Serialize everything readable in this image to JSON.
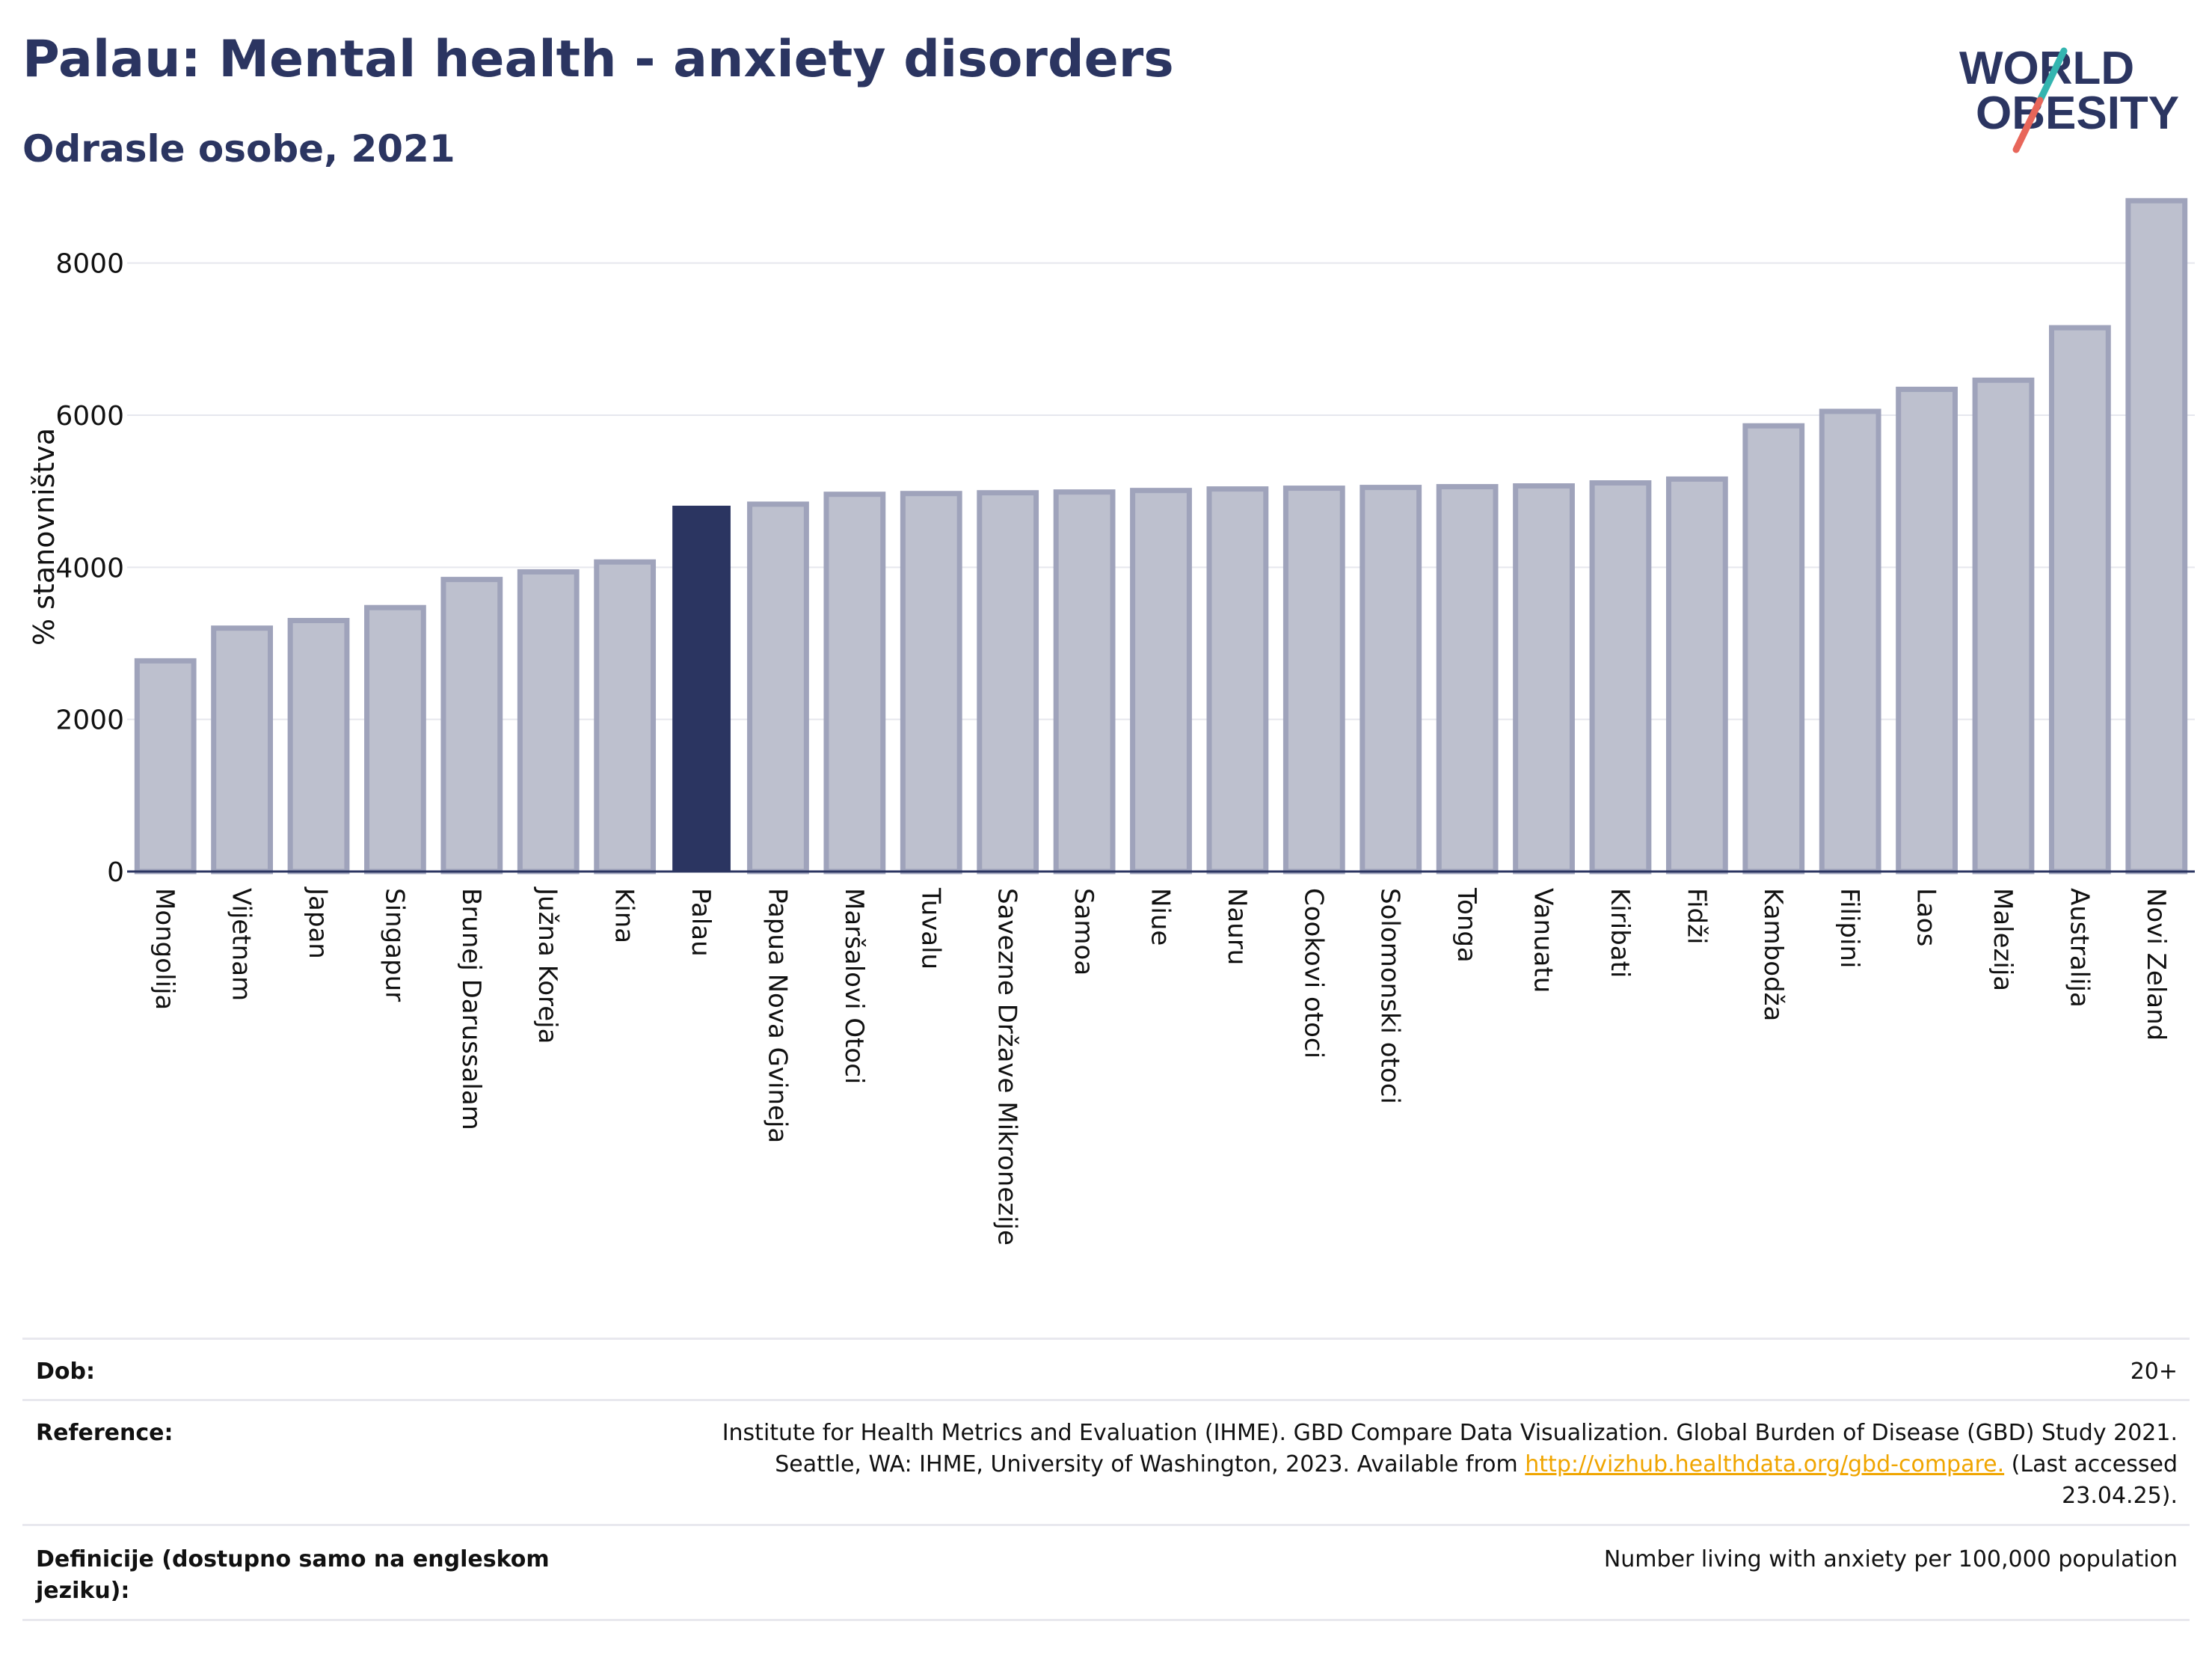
{
  "header": {
    "title": "Palau: Mental health - anxiety disorders",
    "subtitle": "Odrasle osobe, 2021"
  },
  "logo": {
    "line1": "WORLD",
    "line2": "OBESITY"
  },
  "colors": {
    "highlight": "#2b3561",
    "bar_fill": "#bdc0ce",
    "bar_stroke": "#9fa3bb",
    "grid": "#e6e7ee",
    "logo_text": "#2b3561",
    "logo_teal": "#34b5b0",
    "logo_red": "#e8665a"
  },
  "chart_data": {
    "type": "bar",
    "ylabel": "% stanovništva",
    "ylim": [
      0,
      9000
    ],
    "yticks": [
      0,
      2000,
      4000,
      6000,
      8000
    ],
    "highlight": "Palau",
    "categories": [
      "Mongolija",
      "Vijetnam",
      "Japan",
      "Singapur",
      "Brunej Darussalam",
      "Južna Koreja",
      "Kina",
      "Palau",
      "Papua Nova Gvineja",
      "Maršalovi Otoci",
      "Tuvalu",
      "Savezne Države Mikronezije",
      "Samoa",
      "Niue",
      "Nauru",
      "Cookovi otoci",
      "Solomonski otoci",
      "Tonga",
      "Vanuatu",
      "Kiribati",
      "Fidži",
      "Kambodža",
      "Filipini",
      "Laos",
      "Malezija",
      "Australija",
      "Novi Zeland"
    ],
    "values": [
      2770,
      3200,
      3300,
      3470,
      3840,
      3940,
      4070,
      4800,
      4830,
      4960,
      4970,
      4980,
      4990,
      5010,
      5030,
      5040,
      5050,
      5060,
      5070,
      5110,
      5160,
      5860,
      6050,
      6340,
      6460,
      7150,
      8820
    ],
    "grid": true
  },
  "footer": {
    "age_label": "Dob:",
    "age_value": "20+",
    "ref_label": "Reference:",
    "ref_line1": "Institute for Health Metrics and Evaluation (IHME). GBD Compare Data Visualization. Global Burden of Disease (GBD) Study 2021.",
    "ref_line2_pre": "Seattle, WA: IHME, University of Washington, 2023. Available from ",
    "ref_link": "http://vizhub.healthdata.org/gbd-compare.",
    "ref_line2_post": " (Last accessed",
    "ref_line3": "23.04.25).",
    "def_label_1": "Definicije (dostupno samo na engleskom",
    "def_label_2": "jeziku):",
    "def_value": "Number living with anxiety per 100,000 population"
  }
}
